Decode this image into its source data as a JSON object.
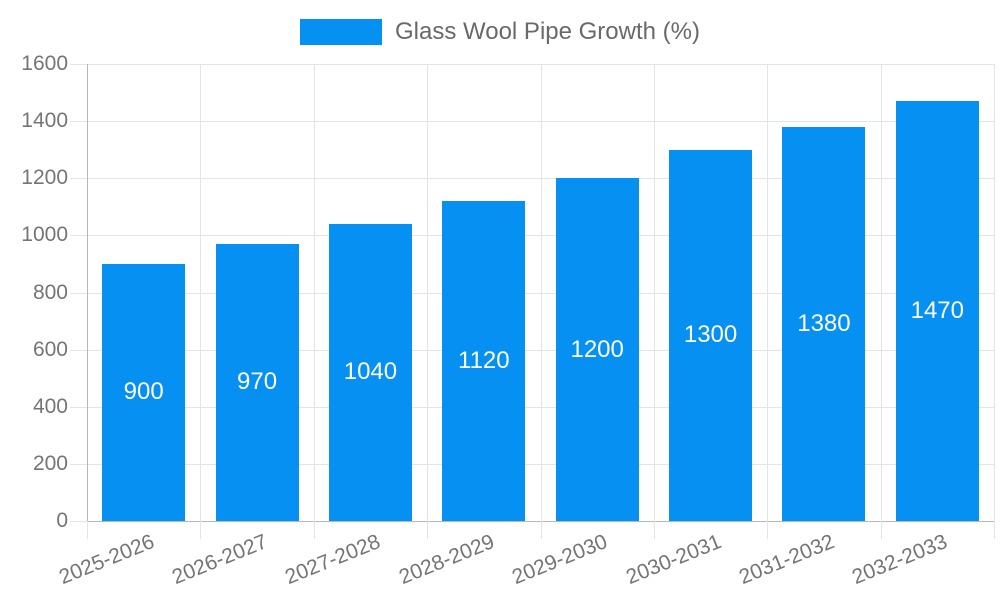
{
  "chart_data": {
    "type": "bar",
    "title": "",
    "xlabel": "",
    "ylabel": "",
    "legend": {
      "label": "Glass Wool Pipe Growth (%)",
      "position": "top"
    },
    "categories": [
      "2025-2026",
      "2026-2027",
      "2027-2028",
      "2028-2029",
      "2029-2030",
      "2030-2031",
      "2031-2032",
      "2032-2033"
    ],
    "values": [
      900,
      970,
      1040,
      1120,
      1200,
      1300,
      1380,
      1470
    ],
    "data_labels": [
      "900",
      "970",
      "1040",
      "1120",
      "1200",
      "1300",
      "1380",
      "1470"
    ],
    "ylim": [
      0,
      1600
    ],
    "ytick_step": 200,
    "yticks": [
      "0",
      "200",
      "400",
      "600",
      "800",
      "1000",
      "1200",
      "1400",
      "1600"
    ],
    "grid": "on",
    "legend_position": "top-center",
    "colors": {
      "bar": "#0590f2",
      "data_label": "#ffffff",
      "axis_text": "#757575",
      "legend_text": "#696969",
      "grid_line": "#e4e4e4",
      "axis_line": "#b8b8b8"
    }
  }
}
